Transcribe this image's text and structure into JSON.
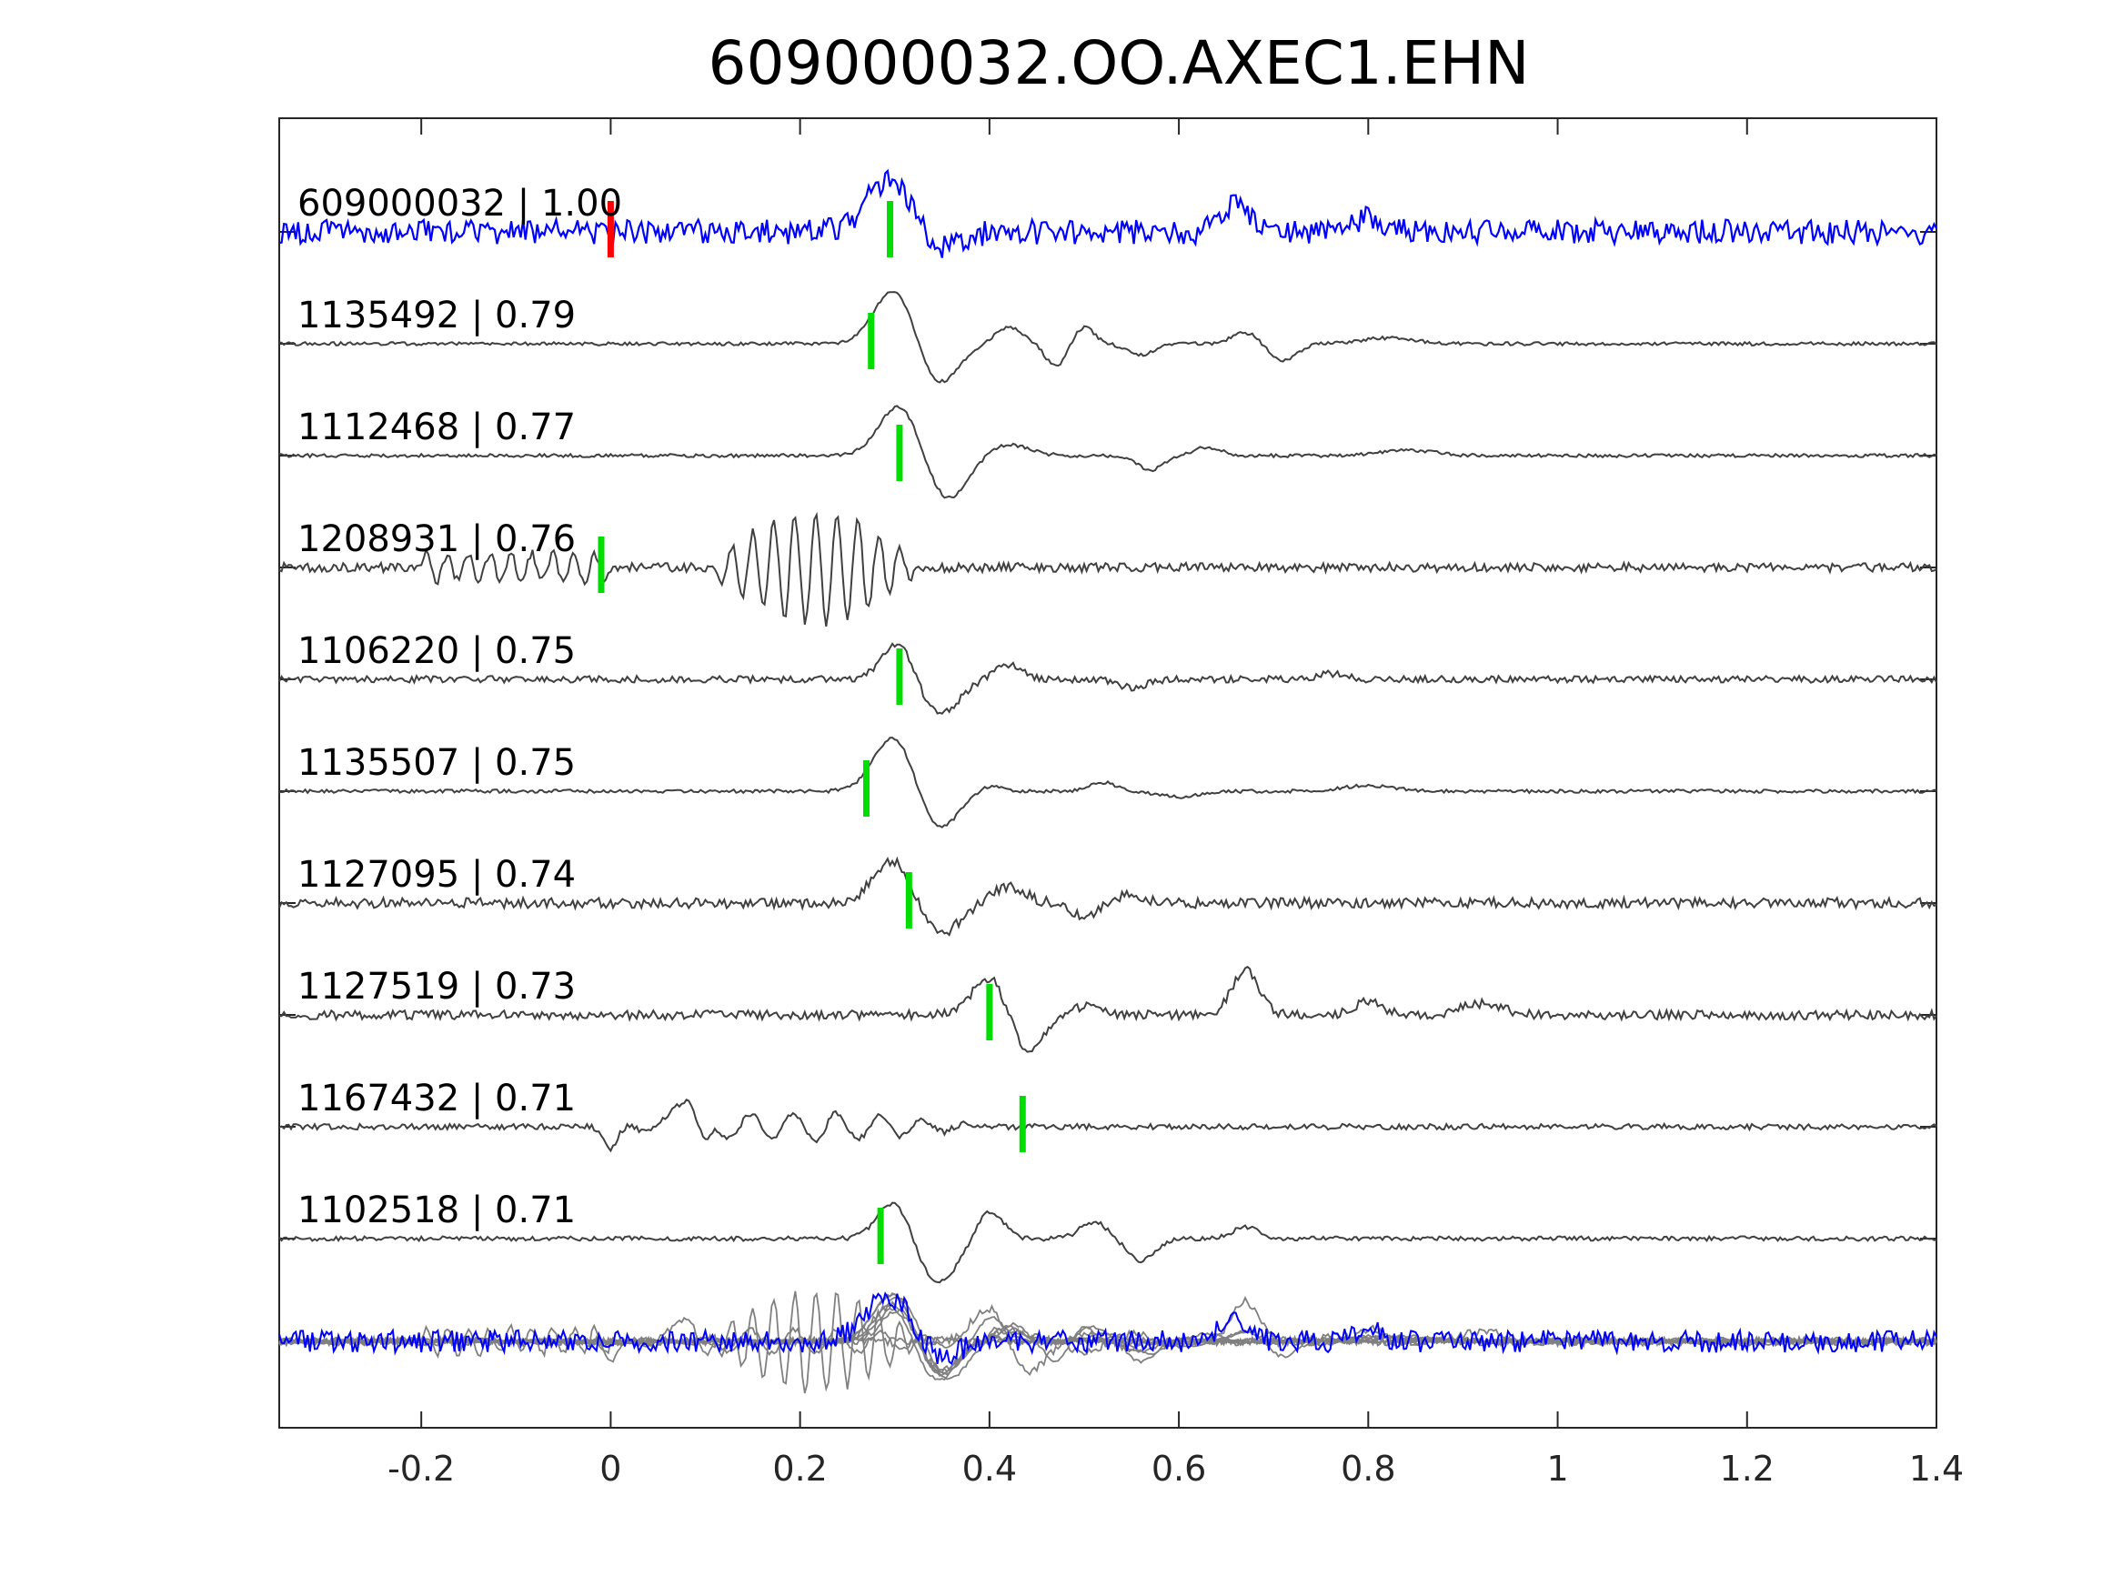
{
  "chart_data": {
    "type": "line",
    "title": "609000032.OO.AXEC1.EHN",
    "xlabel": "",
    "ylabel": "",
    "xlim": [
      -0.35,
      1.4
    ],
    "xticks": [
      -0.2,
      0,
      0.2,
      0.4,
      0.6,
      0.8,
      1,
      1.2,
      1.4
    ],
    "xtick_labels": [
      "-0.2",
      "0",
      "0.2",
      "0.4",
      "0.6",
      "0.8",
      "1",
      "1.2",
      "1.4"
    ],
    "grid": false,
    "legend": "none",
    "colors": {
      "template": "#0000ff",
      "match": "#404040",
      "overlay": "#808080",
      "pick_template": "#ff0000",
      "pick_match": "#00dd00",
      "axis": "#262626"
    },
    "traces": [
      {
        "label": "609000032 | 1.00",
        "id": "609000032",
        "correlation": 1.0,
        "role": "template",
        "pick_time": 0.0,
        "pick_color": "red",
        "detection_time": 0.295,
        "wavelets": [
          [
            0.295,
            0.035,
            0.9
          ],
          [
            0.345,
            0.03,
            -0.35
          ],
          [
            0.66,
            0.02,
            0.5
          ],
          [
            0.8,
            0.02,
            0.25
          ]
        ],
        "noise": 0.22
      },
      {
        "label": "1135492 | 0.79",
        "id": "1135492",
        "correlation": 0.79,
        "role": "match",
        "pick_time": 0.275,
        "pick_color": "green",
        "wavelets": [
          [
            0.3,
            0.03,
            1.0
          ],
          [
            0.345,
            0.03,
            -0.75
          ],
          [
            0.42,
            0.02,
            0.3
          ],
          [
            0.47,
            0.015,
            -0.4
          ],
          [
            0.5,
            0.015,
            0.3
          ],
          [
            0.56,
            0.02,
            -0.2
          ],
          [
            0.67,
            0.02,
            0.2
          ],
          [
            0.71,
            0.02,
            -0.3
          ],
          [
            0.82,
            0.04,
            0.1
          ]
        ],
        "noise": 0.03
      },
      {
        "label": "1112468 | 0.77",
        "id": "1112468",
        "correlation": 0.77,
        "role": "match",
        "pick_time": 0.305,
        "pick_color": "green",
        "wavelets": [
          [
            0.305,
            0.03,
            0.9
          ],
          [
            0.355,
            0.03,
            -0.8
          ],
          [
            0.42,
            0.03,
            0.2
          ],
          [
            0.57,
            0.02,
            -0.25
          ],
          [
            0.63,
            0.02,
            0.15
          ],
          [
            0.84,
            0.04,
            0.1
          ]
        ],
        "noise": 0.03
      },
      {
        "label": "1208931 | 0.76",
        "id": "1208931",
        "correlation": 0.76,
        "role": "match",
        "pick_time": -0.01,
        "pick_color": "green",
        "wavelets": [],
        "oscillation": {
          "start": 0.1,
          "end": 0.33,
          "freq": 45,
          "amp": 1.0
        },
        "early_oscillation": {
          "start": -0.2,
          "end": 0.0,
          "freq": 45,
          "amp": 0.25
        },
        "noise": 0.08
      },
      {
        "label": "1106220 | 0.75",
        "id": "1106220",
        "correlation": 0.75,
        "role": "match",
        "pick_time": 0.305,
        "pick_color": "green",
        "wavelets": [
          [
            0.305,
            0.025,
            0.7
          ],
          [
            0.345,
            0.03,
            -0.65
          ],
          [
            0.42,
            0.02,
            0.25
          ],
          [
            0.55,
            0.02,
            -0.15
          ],
          [
            0.76,
            0.02,
            0.1
          ]
        ],
        "noise": 0.06
      },
      {
        "label": "1135507 | 0.75",
        "id": "1135507",
        "correlation": 0.75,
        "role": "match",
        "pick_time": 0.27,
        "pick_color": "green",
        "wavelets": [
          [
            0.3,
            0.03,
            1.0
          ],
          [
            0.345,
            0.03,
            -0.7
          ],
          [
            0.4,
            0.02,
            0.1
          ],
          [
            0.52,
            0.02,
            0.15
          ],
          [
            0.6,
            0.03,
            -0.1
          ],
          [
            0.8,
            0.04,
            0.1
          ]
        ],
        "noise": 0.03
      },
      {
        "label": "1127095 | 0.74",
        "id": "1127095",
        "correlation": 0.74,
        "role": "match",
        "pick_time": 0.315,
        "pick_color": "green",
        "wavelets": [
          [
            0.3,
            0.03,
            0.8
          ],
          [
            0.345,
            0.03,
            -0.6
          ],
          [
            0.42,
            0.025,
            0.3
          ],
          [
            0.5,
            0.02,
            -0.25
          ],
          [
            0.55,
            0.02,
            0.15
          ]
        ],
        "noise": 0.09
      },
      {
        "label": "1127519 | 0.73",
        "id": "1127519",
        "correlation": 0.73,
        "role": "match",
        "pick_time": 0.4,
        "pick_color": "green",
        "wavelets": [
          [
            0.4,
            0.025,
            0.7
          ],
          [
            0.44,
            0.025,
            -0.65
          ],
          [
            0.5,
            0.02,
            0.15
          ],
          [
            0.67,
            0.02,
            0.8
          ],
          [
            0.8,
            0.02,
            0.25
          ],
          [
            0.92,
            0.03,
            0.2
          ]
        ],
        "noise": 0.08
      },
      {
        "label": "1167432 | 0.71",
        "id": "1167432",
        "correlation": 0.71,
        "role": "match",
        "pick_time": 0.435,
        "pick_color": "green",
        "wavelets": [
          [
            0.0,
            0.01,
            -0.4
          ],
          [
            0.08,
            0.015,
            0.6
          ],
          [
            0.1,
            0.01,
            -0.5
          ]
        ],
        "oscillation": {
          "start": 0.0,
          "end": 0.4,
          "freq": 22,
          "amp": 0.25
        },
        "noise": 0.05
      },
      {
        "label": "1102518 | 0.71",
        "id": "1102518",
        "correlation": 0.71,
        "role": "match",
        "pick_time": 0.285,
        "pick_color": "green",
        "wavelets": [
          [
            0.3,
            0.025,
            0.7
          ],
          [
            0.345,
            0.03,
            -0.8
          ],
          [
            0.4,
            0.02,
            0.5
          ],
          [
            0.51,
            0.02,
            0.3
          ],
          [
            0.56,
            0.02,
            -0.4
          ],
          [
            0.67,
            0.02,
            0.2
          ]
        ],
        "noise": 0.04
      }
    ],
    "overlay": {
      "role": "stack of all traces",
      "label": ""
    }
  }
}
